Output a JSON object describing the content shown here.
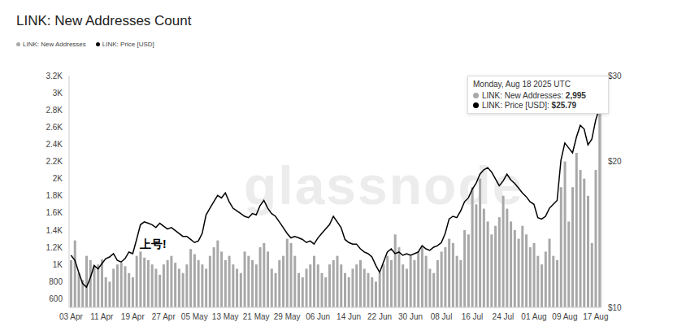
{
  "chart_data": {
    "type": "bar",
    "title": "LINK: New Addresses Count",
    "watermark": "glassnode",
    "annotation": "上号!",
    "tooltip": {
      "title": "Monday, Aug 18 2025 UTC",
      "rows": [
        {
          "label": "LINK: New Addresses",
          "value": "2,995"
        },
        {
          "label": "LINK: Price [USD]",
          "value": "$25.79"
        }
      ]
    },
    "legend": "top-left",
    "grid": false,
    "log": "y2",
    "categories": [
      "03 Apr",
      null,
      null,
      null,
      null,
      null,
      null,
      null,
      "11 Apr",
      null,
      null,
      null,
      null,
      null,
      null,
      null,
      "19 Apr",
      null,
      null,
      null,
      null,
      null,
      null,
      null,
      "27 Apr",
      null,
      null,
      null,
      null,
      null,
      null,
      null,
      "05 May",
      null,
      null,
      null,
      null,
      null,
      null,
      null,
      "13 May",
      null,
      null,
      null,
      null,
      null,
      null,
      null,
      "21 May",
      null,
      null,
      null,
      null,
      null,
      null,
      null,
      "29 May",
      null,
      null,
      null,
      null,
      null,
      null,
      null,
      "06 Jun",
      null,
      null,
      null,
      null,
      null,
      null,
      null,
      "14 Jun",
      null,
      null,
      null,
      null,
      null,
      null,
      null,
      "22 Jun",
      null,
      null,
      null,
      null,
      null,
      null,
      null,
      "30 Jun",
      null,
      null,
      null,
      null,
      null,
      null,
      null,
      "08 Jul",
      null,
      null,
      null,
      null,
      null,
      null,
      null,
      "16 Jul",
      null,
      null,
      null,
      null,
      null,
      null,
      null,
      "24 Jul",
      null,
      null,
      null,
      null,
      null,
      null,
      null,
      "01 Aug",
      null,
      null,
      null,
      null,
      null,
      null,
      null,
      "09 Aug",
      null,
      null,
      null,
      null,
      null,
      null,
      null,
      "17 Aug",
      null
    ],
    "series": [
      {
        "name": "LINK: New Addresses",
        "type": "bar",
        "color": "#a8a8a8",
        "values": [
          1050,
          1280,
          900,
          820,
          1100,
          1050,
          980,
          1000,
          1060,
          850,
          800,
          950,
          1000,
          1020,
          980,
          900,
          850,
          1100,
          1150,
          1080,
          1050,
          1000,
          950,
          880,
          1000,
          1050,
          1100,
          1020,
          950,
          900,
          1000,
          1180,
          1120,
          1050,
          1000,
          950,
          1100,
          1200,
          1280,
          1150,
          1050,
          1100,
          1000,
          950,
          900,
          1150,
          1100,
          1050,
          1000,
          1200,
          1250,
          1150,
          950,
          900,
          1050,
          1100,
          1300,
          1250,
          1100,
          900,
          850,
          950,
          1000,
          1100,
          1000,
          900,
          850,
          1000,
          1050,
          1100,
          1000,
          900,
          850,
          950,
          1000,
          1050,
          950,
          900,
          850,
          800,
          900,
          1000,
          1100,
          1050,
          1350,
          1200,
          1000,
          950,
          1100,
          1050,
          1150,
          1200,
          1100,
          950,
          900,
          1050,
          1150,
          1200,
          1300,
          1250,
          1100,
          1050,
          1400,
          1350,
          1900,
          1700,
          2000,
          1650,
          1500,
          1350,
          1450,
          1550,
          1800,
          1650,
          1500,
          1400,
          1300,
          1450,
          1350,
          1200,
          1250,
          1100,
          1000,
          1150,
          1300,
          1100,
          1050,
          1900,
          2200,
          1500,
          1900,
          2300,
          2100,
          2000,
          1800,
          1250,
          2100,
          2995
        ]
      },
      {
        "name": "LINK: Price [USD]",
        "type": "line",
        "color": "#000000",
        "axis": "y2",
        "values": [
          12.8,
          12.5,
          11.8,
          11.2,
          11.0,
          11.5,
          12.2,
          12.0,
          12.3,
          12.6,
          12.7,
          12.9,
          12.5,
          12.4,
          12.6,
          13.0,
          12.9,
          13.8,
          14.8,
          15.0,
          14.9,
          14.8,
          14.6,
          14.9,
          14.7,
          14.5,
          14.6,
          14.4,
          14.2,
          14.0,
          14.0,
          13.8,
          13.6,
          13.7,
          14.2,
          15.5,
          16.0,
          16.5,
          17.0,
          16.8,
          17.2,
          16.5,
          16.0,
          15.8,
          15.6,
          15.4,
          15.3,
          15.6,
          15.5,
          16.2,
          16.6,
          16.0,
          15.6,
          15.4,
          15.0,
          14.6,
          14.2,
          13.9,
          14.0,
          13.9,
          13.8,
          13.6,
          13.7,
          13.5,
          13.9,
          14.2,
          14.5,
          14.8,
          15.4,
          15.0,
          14.6,
          13.8,
          13.6,
          13.5,
          13.5,
          13.2,
          13.0,
          12.9,
          12.7,
          12.2,
          11.8,
          12.4,
          13.0,
          13.2,
          12.9,
          13.0,
          12.8,
          12.9,
          12.8,
          12.9,
          13.0,
          13.4,
          13.2,
          13.1,
          13.3,
          13.4,
          13.6,
          14.2,
          15.2,
          15.4,
          15.3,
          15.8,
          16.5,
          16.8,
          17.5,
          18.0,
          18.8,
          19.2,
          19.4,
          19.0,
          18.4,
          17.8,
          18.2,
          18.8,
          18.3,
          18.0,
          17.6,
          17.2,
          16.9,
          16.5,
          16.3,
          15.3,
          15.2,
          15.4,
          16.0,
          16.3,
          16.6,
          20.1,
          21.8,
          21.3,
          20.8,
          22.4,
          23.7,
          23.3,
          21.6,
          22.2,
          24.3,
          25.79
        ]
      }
    ],
    "ylim": [
      500,
      3200
    ],
    "yticks": [
      600,
      800,
      {
        "value": 1000,
        "label": "1K"
      },
      {
        "value": 1200,
        "label": "1.2K"
      },
      {
        "value": 1400,
        "label": "1.4K"
      },
      {
        "value": 1600,
        "label": "1.6K"
      },
      {
        "value": 1800,
        "label": "1.8K"
      },
      {
        "value": 2000,
        "label": "2K"
      },
      {
        "value": 2200,
        "label": "2.2K"
      },
      {
        "value": 2400,
        "label": "2.4K"
      },
      {
        "value": 2600,
        "label": "2.6K"
      },
      {
        "value": 2800,
        "label": "2.8K"
      },
      {
        "value": 3000,
        "label": "3K"
      },
      {
        "value": 3200,
        "label": "3.2K"
      }
    ],
    "y2lim": [
      10,
      30
    ],
    "y2ticks": [
      {
        "value": 10,
        "label": "$10"
      },
      {
        "value": 20,
        "label": "$20"
      },
      {
        "value": 30,
        "label": "$30"
      }
    ]
  }
}
